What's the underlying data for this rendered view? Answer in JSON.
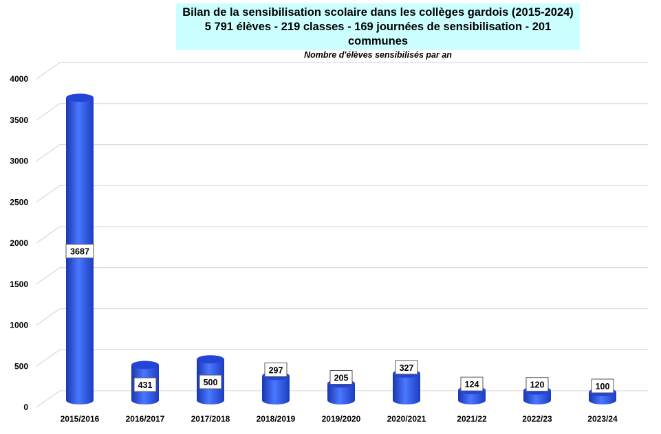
{
  "chart_data": {
    "type": "bar",
    "style": "3d-cylinder",
    "title": "Bilan de la sensibilisation scolaire dans les collèges gardois (2015-2024)",
    "subtitle": "5 791 élèves - 219 classes - 169 journées de sensibilisation - 201 communes",
    "caption": "Nombre d'élèves sensibilisés par an",
    "categories": [
      "2015/2016",
      "2016/2017",
      "2017/2018",
      "2018/2019",
      "2019/2020",
      "2020/2021",
      "2021/22",
      "2022/23",
      "2023/24"
    ],
    "values": [
      3687,
      431,
      500,
      297,
      205,
      327,
      124,
      120,
      100
    ],
    "ylim": [
      0,
      4000
    ],
    "yticks": [
      0,
      500,
      1000,
      1500,
      2000,
      2500,
      3000,
      3500,
      4000
    ],
    "grid": true,
    "xlabel": "",
    "ylabel": "",
    "colors": {
      "bar": "#2a52e8",
      "bar_light": "#4f7bff",
      "bar_dark": "#1a35b0",
      "title_bg": "#ccffff",
      "grid": "#d9d9d9"
    }
  }
}
